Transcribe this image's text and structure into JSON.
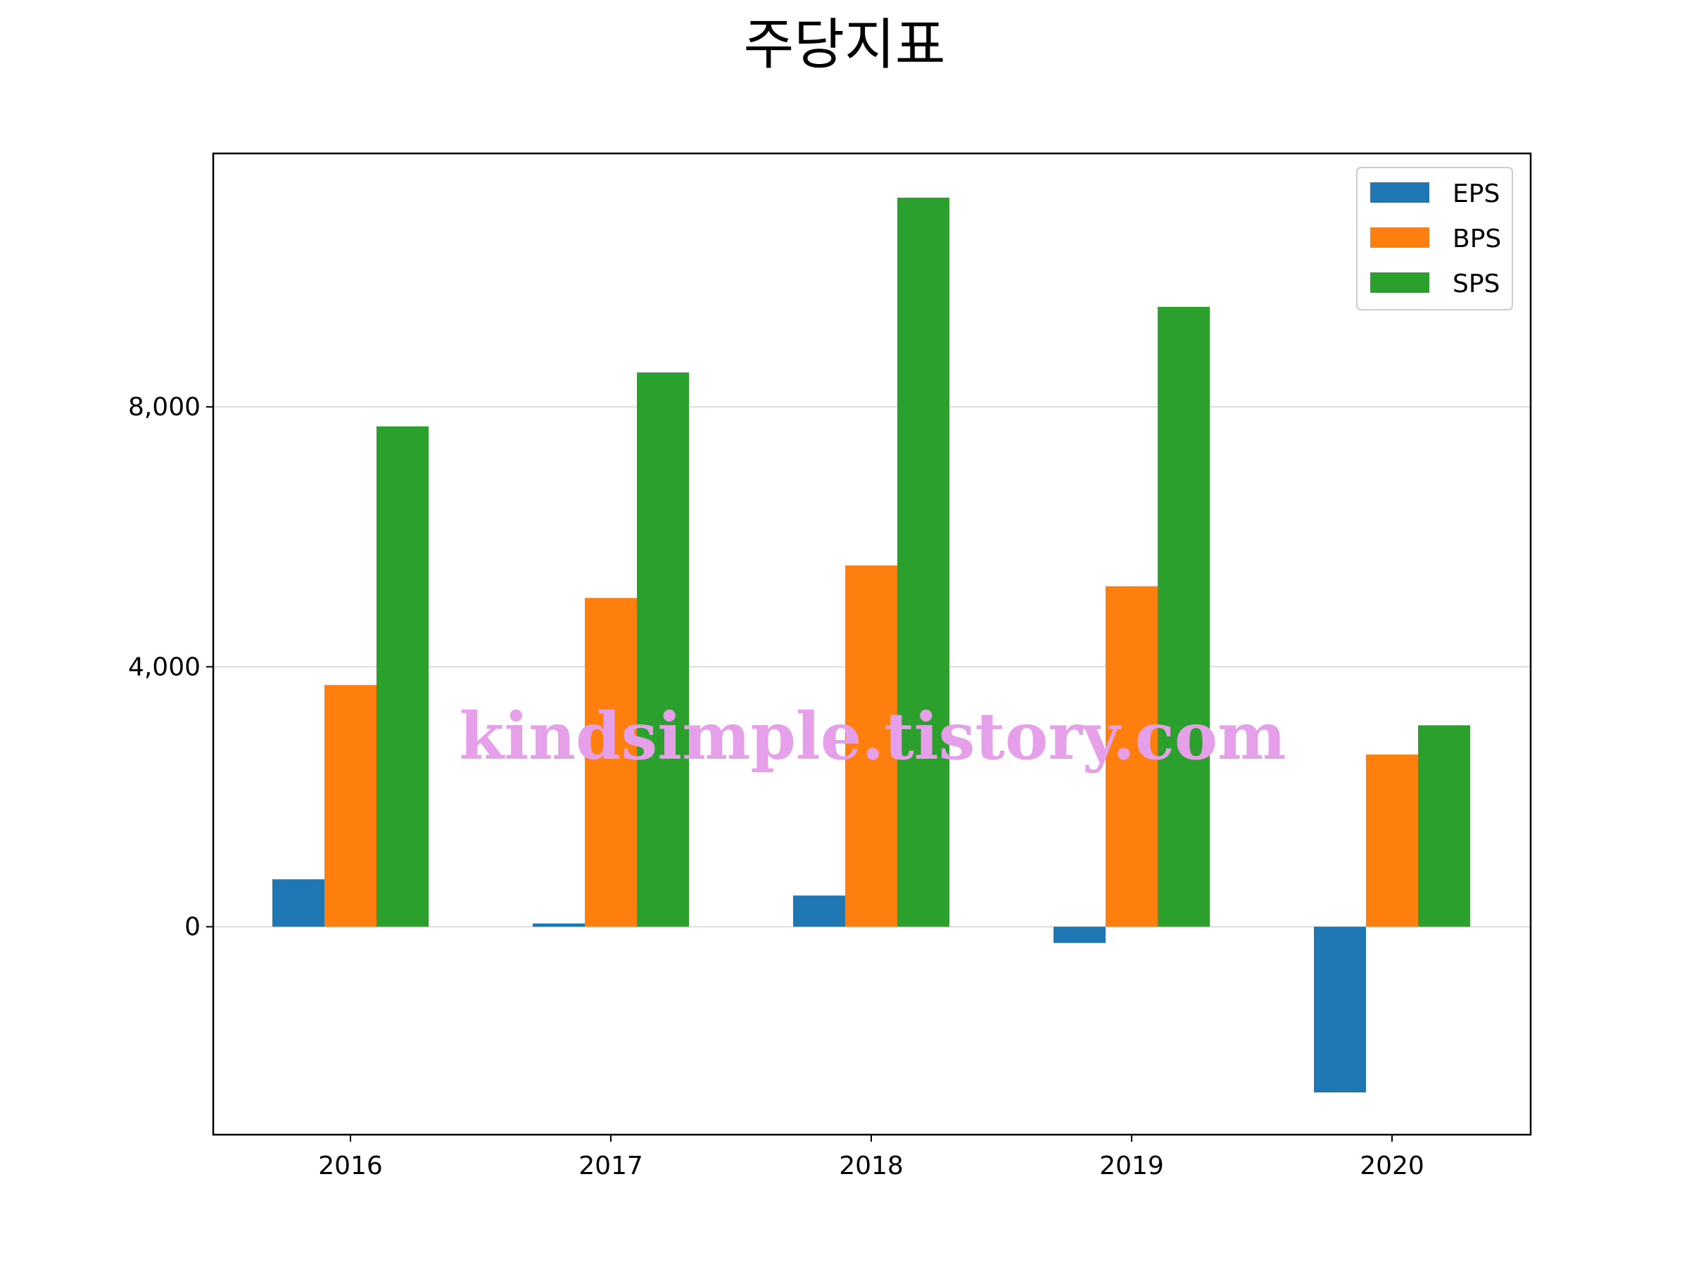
{
  "chart_data": {
    "type": "bar",
    "title": "주당지표",
    "xlabel": "",
    "ylabel": "",
    "categories": [
      "2016",
      "2017",
      "2018",
      "2019",
      "2020"
    ],
    "series": [
      {
        "name": "EPS",
        "color": "#1f77b4",
        "values": [
          730,
          50,
          480,
          -250,
          -2550
        ]
      },
      {
        "name": "BPS",
        "color": "#ff7f0e",
        "values": [
          3720,
          5060,
          5560,
          5240,
          2650
        ]
      },
      {
        "name": "SPS",
        "color": "#2ca02c",
        "values": [
          7700,
          8530,
          11220,
          9540,
          3100
        ]
      }
    ],
    "ylim": [
      -3200,
      11900
    ],
    "yticks": [
      0,
      4000,
      8000
    ],
    "ytick_labels": [
      "0",
      "4,000",
      "8,000"
    ],
    "grid": true,
    "legend_position": "top-right",
    "watermark": "kindsimple.tistory.com"
  }
}
